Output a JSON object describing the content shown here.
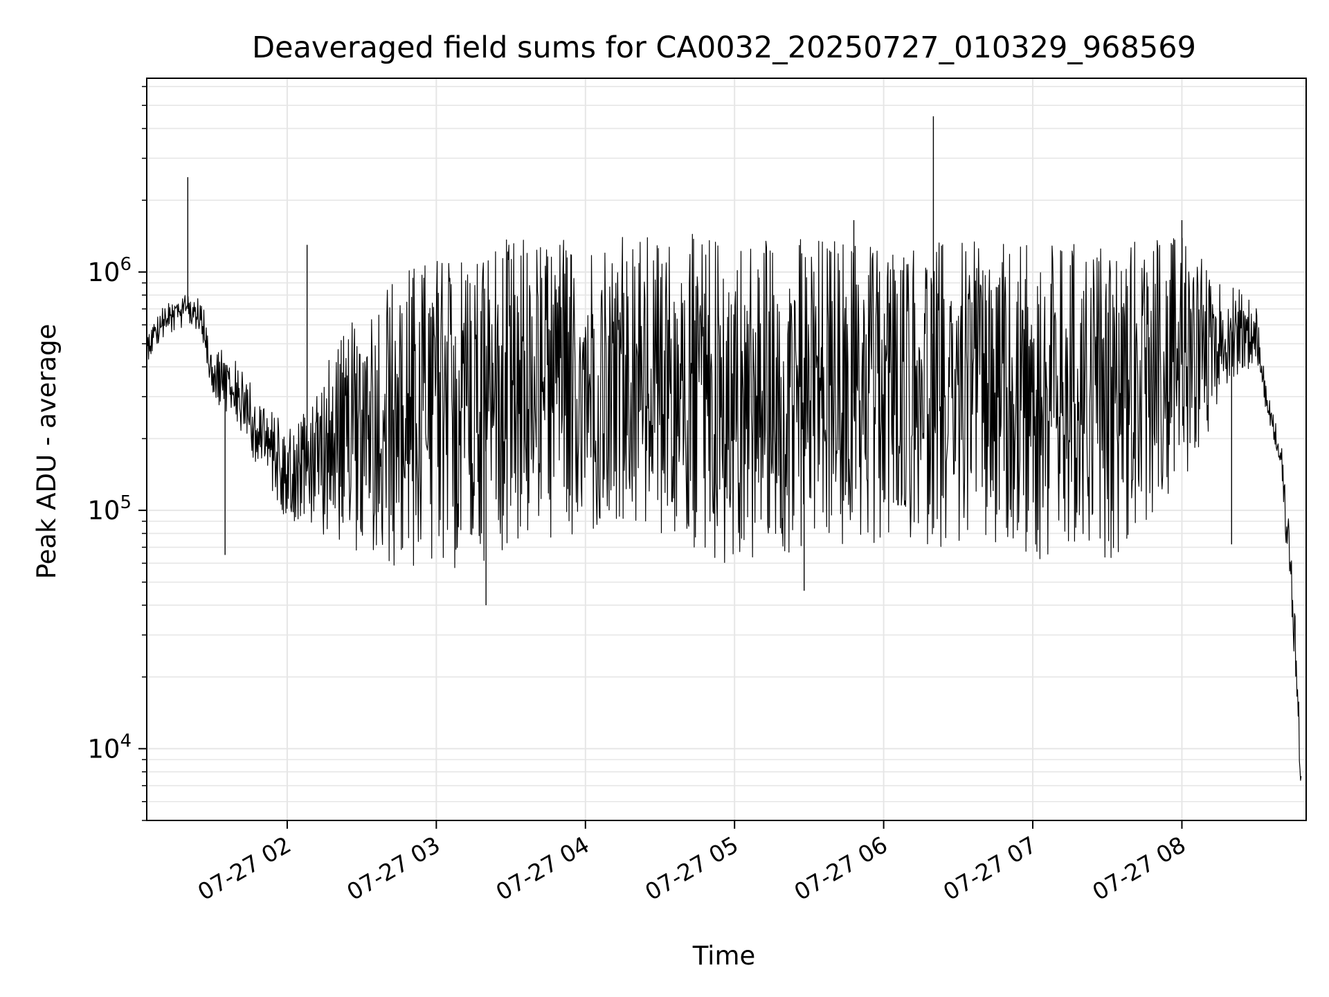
{
  "chart_data": {
    "type": "line",
    "title": "Deaveraged field sums for CA0032_20250727_010329_968569",
    "xlabel": "Time",
    "ylabel": "Peak ADU - average",
    "yscale": "log",
    "ylim": [
      5000,
      6500000
    ],
    "xlim": [
      "2025-07-27 01:03:29",
      "2025-07-27 08:50:00"
    ],
    "x_ticks": [
      "2025-07-27 02:00",
      "2025-07-27 03:00",
      "2025-07-27 04:00",
      "2025-07-27 05:00",
      "2025-07-27 06:00",
      "2025-07-27 07:00",
      "2025-07-27 08:00"
    ],
    "x_tick_labels": [
      "07-27 02",
      "07-27 03",
      "07-27 04",
      "07-27 05",
      "07-27 06",
      "07-27 07",
      "07-27 08"
    ],
    "y_ticks": [
      10000,
      100000,
      1000000
    ],
    "y_tick_labels": [
      {
        "base": "10",
        "exp": "4"
      },
      {
        "base": "10",
        "exp": "5"
      },
      {
        "base": "10",
        "exp": "6"
      }
    ],
    "grid": true,
    "line_color": "#000000",
    "grid_color": "#e6e6e6",
    "series": [
      {
        "values_envelope": [
          {
            "x": "2025-07-27 01:03:29",
            "low": 420000,
            "high": 560000
          },
          {
            "x": "2025-07-27 01:10",
            "low": 520000,
            "high": 720000
          },
          {
            "x": "2025-07-27 01:20",
            "low": 600000,
            "high": 820000
          },
          {
            "x": "2025-07-27 01:25",
            "low": 560000,
            "high": 780000
          },
          {
            "x": "2025-07-27 01:30",
            "low": 300000,
            "high": 520000
          },
          {
            "x": "2025-07-27 01:40",
            "low": 220000,
            "high": 420000
          },
          {
            "x": "2025-07-27 01:50",
            "low": 140000,
            "high": 300000
          },
          {
            "x": "2025-07-27 02:00",
            "low": 90000,
            "high": 220000
          },
          {
            "x": "2025-07-27 02:20",
            "low": 75000,
            "high": 500000
          },
          {
            "x": "2025-07-27 02:40",
            "low": 55000,
            "high": 1000000
          },
          {
            "x": "2025-07-27 03:10",
            "low": 55000,
            "high": 1300000
          },
          {
            "x": "2025-07-27 03:30",
            "low": 70000,
            "high": 1400000
          },
          {
            "x": "2025-07-27 04:00",
            "low": 75000,
            "high": 1450000
          },
          {
            "x": "2025-07-27 04:30",
            "low": 75000,
            "high": 1450000
          },
          {
            "x": "2025-07-27 05:00",
            "low": 55000,
            "high": 1450000
          },
          {
            "x": "2025-07-27 05:30",
            "low": 65000,
            "high": 1450000
          },
          {
            "x": "2025-07-27 06:00",
            "low": 70000,
            "high": 1400000
          },
          {
            "x": "2025-07-27 06:30",
            "low": 70000,
            "high": 1350000
          },
          {
            "x": "2025-07-27 07:00",
            "low": 55000,
            "high": 1300000
          },
          {
            "x": "2025-07-27 07:30",
            "low": 60000,
            "high": 1400000
          },
          {
            "x": "2025-07-27 08:00",
            "low": 120000,
            "high": 1450000
          },
          {
            "x": "2025-07-27 08:20",
            "low": 350000,
            "high": 900000
          },
          {
            "x": "2025-07-27 08:30",
            "low": 400000,
            "high": 750000
          },
          {
            "x": "2025-07-27 08:34",
            "low": 250000,
            "high": 330000
          },
          {
            "x": "2025-07-27 08:40",
            "low": 150000,
            "high": 190000
          },
          {
            "x": "2025-07-27 08:45",
            "low": 20000,
            "high": 60000
          },
          {
            "x": "2025-07-27 08:48",
            "low": 6000,
            "high": 9000
          }
        ],
        "spikes": [
          {
            "x": "2025-07-27 01:20",
            "y": 2500000
          },
          {
            "x": "2025-07-27 01:35",
            "y": 65000
          },
          {
            "x": "2025-07-27 02:08",
            "y": 1300000
          },
          {
            "x": "2025-07-27 03:20",
            "y": 40000
          },
          {
            "x": "2025-07-27 05:28",
            "y": 46000
          },
          {
            "x": "2025-07-27 06:20",
            "y": 4500000
          },
          {
            "x": "2025-07-27 08:20",
            "y": 72000
          },
          {
            "x": "2025-07-27 05:48",
            "y": 1650000
          },
          {
            "x": "2025-07-27 08:00",
            "y": 1650000
          }
        ]
      }
    ]
  }
}
